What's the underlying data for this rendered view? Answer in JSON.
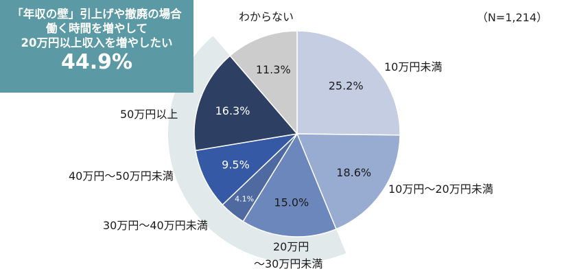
{
  "callout": {
    "lines": [
      "「年収の壁」引上げや撤廃の場合",
      "働く時間を増やして",
      "20万円以上収入を増やしたい"
    ],
    "big": "44.9%",
    "color": "#5b9aa5"
  },
  "note": "（N=1,214）",
  "chart_data": {
    "type": "pie",
    "unit": "%",
    "start": "12 o'clock",
    "direction": "clockwise",
    "highlight_color": "#e1e9ea",
    "slices": [
      {
        "label": "10万円未満",
        "value": 25.2,
        "value_label": "25.2%",
        "color": "#c4cde2"
      },
      {
        "label": "10万円～20万円未満",
        "value": 18.6,
        "value_label": "18.6%",
        "color": "#98abd0"
      },
      {
        "label": "20万円\n～30万円未満",
        "value": 15.0,
        "value_label": "15.0%",
        "color": "#6b87bc"
      },
      {
        "label": "30万円～40万円未満",
        "value": 4.1,
        "value_label": "4.1%",
        "color": "#4f6aa1"
      },
      {
        "label": "40万円～50万円未満",
        "value": 9.5,
        "value_label": "9.5%",
        "color": "#3559a5"
      },
      {
        "label": "50万円以上",
        "value": 16.3,
        "value_label": "16.3%",
        "color": "#2d3f63"
      },
      {
        "label": "わからない",
        "value": 11.3,
        "value_label": "11.3%",
        "color": "#cdcccc"
      }
    ]
  }
}
